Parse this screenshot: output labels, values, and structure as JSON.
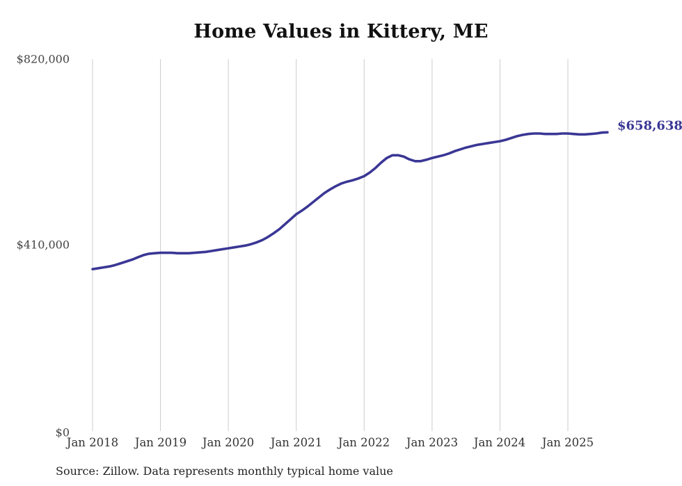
{
  "page": {
    "title": "Home Values in Kittery, ME",
    "source_note": "Source: Zillow. Data represents monthly typical home value"
  },
  "chart_data": {
    "type": "line",
    "title": "Home Values in Kittery, ME",
    "unit": "USD",
    "grid": "vertical-only",
    "legend": "none",
    "colors": {
      "line": "#3a3795",
      "end_label": "#3a3795",
      "gridline": "#cccccc"
    },
    "y_axis": {
      "range": [
        0,
        820000
      ],
      "tick_values": [
        0,
        410000,
        820000
      ],
      "tick_labels": [
        "$0",
        "$410,000",
        "$820,000"
      ]
    },
    "x_axis": {
      "start_month": "2018-01",
      "end_month": "2025-08",
      "tick_labels": [
        "Jan 2018",
        "Jan 2019",
        "Jan 2020",
        "Jan 2021",
        "Jan 2022",
        "Jan 2023",
        "Jan 2024",
        "Jan 2025"
      ]
    },
    "end_label": "$658,638",
    "latest_value": 658638,
    "series": [
      {
        "name": "Typical home value",
        "monthly_values": [
          357000,
          359000,
          361000,
          363000,
          366000,
          370000,
          374000,
          378000,
          383000,
          388000,
          391000,
          392000,
          393000,
          393000,
          393000,
          392000,
          392000,
          392000,
          393000,
          394000,
          395000,
          397000,
          399000,
          401000,
          403000,
          405000,
          407000,
          409000,
          412000,
          416000,
          421000,
          428000,
          436000,
          445000,
          456000,
          467000,
          478000,
          486000,
          495000,
          505000,
          515000,
          525000,
          533000,
          540000,
          546000,
          550000,
          553000,
          557000,
          562000,
          570000,
          580000,
          592000,
          602000,
          608000,
          608000,
          605000,
          599000,
          595000,
          595000,
          598000,
          602000,
          605000,
          608000,
          612000,
          617000,
          621000,
          625000,
          628000,
          631000,
          633000,
          635000,
          637000,
          639000,
          642000,
          646000,
          650000,
          653000,
          655000,
          656000,
          656000,
          655000,
          655000,
          655000,
          656000,
          656000,
          655000,
          654000,
          654000,
          655000,
          656000,
          658000,
          658638
        ]
      }
    ]
  }
}
